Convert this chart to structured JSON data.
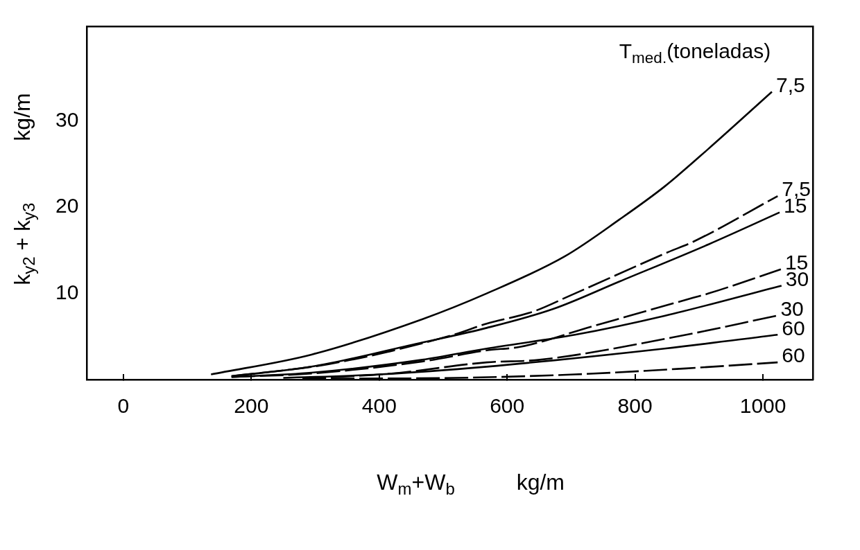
{
  "chart_data": {
    "type": "line",
    "legend_title": "T$_{med.}$(toneladas)",
    "xlabel": "W$_{m}$+W$_{b}$          kg/m",
    "ylabel": "k$_{y2}$ + k$_{y3}$          kg/m",
    "xlim": [
      -57,
      1078
    ],
    "xticks": [
      0,
      200,
      400,
      600,
      800,
      1000
    ],
    "ylim": [
      0,
      41
    ],
    "yticks": [
      10,
      20,
      30
    ],
    "grid": false,
    "legend": false,
    "marker": "none",
    "series": [
      {
        "name": "7,5",
        "color": "#000000",
        "line_style": "solid",
        "x": [
          137,
          294,
          467,
          568,
          690,
          776,
          846,
          915,
          1014
        ],
        "values": [
          0.6,
          2.9,
          7.0,
          10.0,
          14.3,
          18.6,
          22.4,
          26.8,
          33.4
        ]
      },
      {
        "name": "7,5",
        "color": "#000000",
        "line_style": "dashed",
        "x": [
          169,
          321,
          516,
          568,
          641,
          700,
          852,
          891,
          1023
        ],
        "values": [
          0.4,
          1.8,
          5.2,
          6.5,
          7.9,
          9.8,
          14.8,
          16.0,
          21.3
        ]
      },
      {
        "name": "15",
        "color": "#000000",
        "line_style": "solid",
        "x": [
          169,
          294,
          467,
          568,
          672,
          776,
          915,
          1026
        ],
        "values": [
          0.4,
          1.5,
          4.3,
          6.0,
          8.2,
          11.4,
          15.7,
          19.4
        ]
      },
      {
        "name": "15",
        "color": "#000000",
        "line_style": "dashed",
        "x": [
          169,
          294,
          467,
          568,
          620,
          734,
          891,
          915,
          1028
        ],
        "values": [
          0.3,
          0.7,
          2.1,
          3.4,
          3.8,
          6.2,
          9.5,
          10.0,
          12.8
        ]
      },
      {
        "name": "30",
        "color": "#000000",
        "line_style": "solid",
        "x": [
          169,
          294,
          467,
          568,
          706,
          846,
          1029
        ],
        "values": [
          0.3,
          0.8,
          2.3,
          3.6,
          5.2,
          7.4,
          10.9
        ]
      },
      {
        "name": "30",
        "color": "#000000",
        "line_style": "dashed",
        "x": [
          280,
          419,
          568,
          651,
          859,
          1021
        ],
        "values": [
          0.1,
          0.7,
          2.0,
          2.3,
          4.9,
          7.4
        ]
      },
      {
        "name": "60",
        "color": "#000000",
        "line_style": "solid",
        "x": [
          250,
          400,
          568,
          846,
          1023
        ],
        "values": [
          0.2,
          0.6,
          1.5,
          3.6,
          5.2
        ]
      },
      {
        "name": "60",
        "color": "#000000",
        "line_style": "dashed",
        "x": [
          280,
          519,
          706,
          880,
          1023
        ],
        "values": [
          0.1,
          0.2,
          0.6,
          1.3,
          2.0
        ]
      }
    ]
  }
}
